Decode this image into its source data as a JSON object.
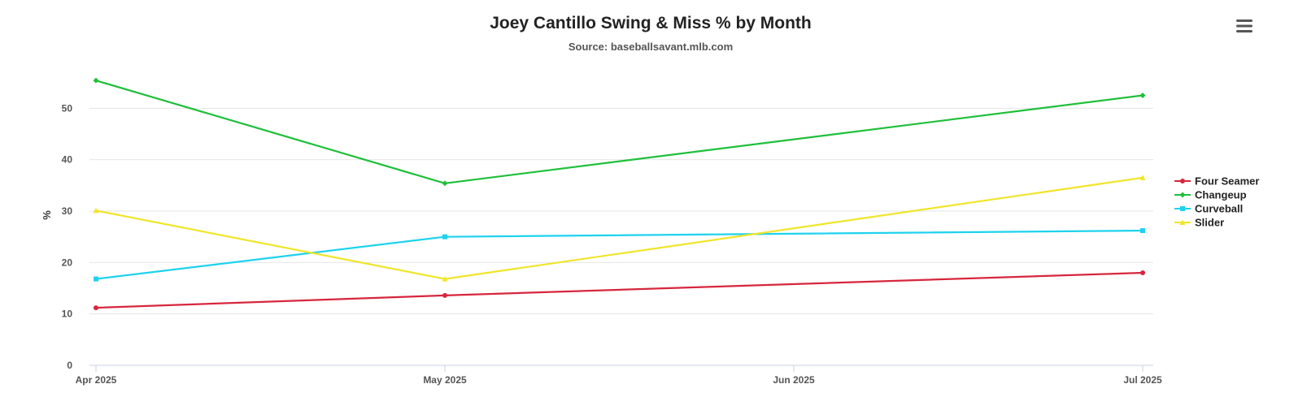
{
  "chart_data": {
    "type": "line",
    "title": "Joey Cantillo Swing & Miss % by Month",
    "subtitle": "Source: baseballsavant.mlb.com",
    "xlabel": "",
    "ylabel": "%",
    "x": [
      "Apr 2025",
      "May 2025",
      "Jun 2025",
      "Jul 2025"
    ],
    "x_ticks": [
      "Apr 2025",
      "May 2025",
      "Jun 2025",
      "Jul 2025"
    ],
    "y_ticks": [
      0,
      10,
      20,
      30,
      40,
      50
    ],
    "ylim": [
      0,
      60
    ],
    "grid": true,
    "legend_position": "right",
    "series": [
      {
        "name": "Four Seamer",
        "color": "#d7263d",
        "marker": "circle",
        "values": [
          11.2,
          13.6,
          null,
          18.0
        ]
      },
      {
        "name": "Changeup",
        "color": "#1fbf3a",
        "marker": "diamond",
        "values": [
          55.4,
          35.4,
          null,
          52.5
        ]
      },
      {
        "name": "Curveball",
        "color": "#1ed2ee",
        "marker": "square",
        "values": [
          16.8,
          25.0,
          null,
          26.2
        ]
      },
      {
        "name": "Slider",
        "color": "#f0e52a",
        "marker": "triangle",
        "values": [
          30.1,
          16.8,
          null,
          36.5
        ]
      }
    ]
  },
  "menu": {
    "icon": "hamburger-menu-icon"
  }
}
